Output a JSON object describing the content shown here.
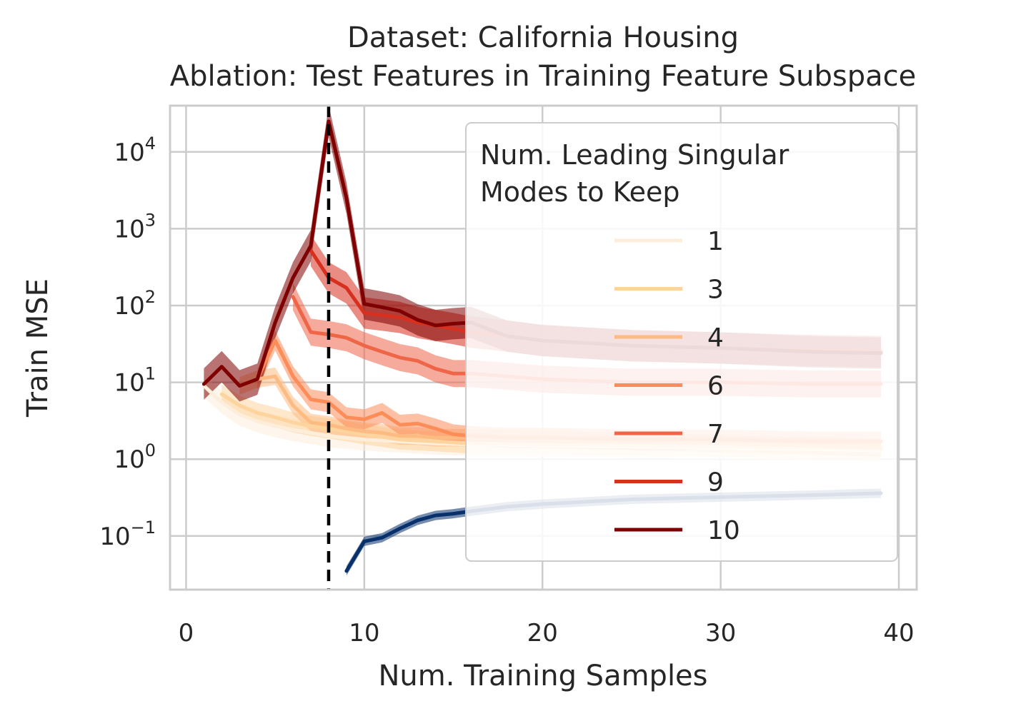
{
  "chart_data": {
    "type": "line",
    "title": "Dataset: California Housing",
    "subtitle": "Ablation: Test Features in Training Feature Subspace",
    "xlabel": "Num. Training Samples",
    "ylabel": "Train MSE",
    "xlim": [
      -0.9,
      41
    ],
    "ylim": [
      0.02,
      40000
    ],
    "yscale": "log",
    "x_ticks": [
      0,
      10,
      20,
      30,
      40
    ],
    "y_ticks": [
      {
        "value": 0.1,
        "base": "10",
        "exp": "−1"
      },
      {
        "value": 1,
        "base": "10",
        "exp": "0"
      },
      {
        "value": 10,
        "base": "10",
        "exp": "1"
      },
      {
        "value": 100,
        "base": "10",
        "exp": "2"
      },
      {
        "value": 1000,
        "base": "10",
        "exp": "3"
      },
      {
        "value": 10000,
        "base": "10",
        "exp": "4"
      }
    ],
    "grid": true,
    "vline": {
      "x": 8,
      "style": "dashed",
      "color": "#000000"
    },
    "legend": {
      "title_lines": [
        "Num. Leading Singular",
        "Modes to Keep"
      ],
      "placement": "upper right"
    },
    "series": [
      {
        "name": "1",
        "color": "#fdeedc",
        "x": [
          1,
          2,
          3,
          4,
          5,
          6,
          7,
          8,
          9,
          10,
          12,
          14,
          16,
          20,
          25,
          30,
          35,
          39
        ],
        "y": [
          9,
          5.5,
          3.8,
          3.1,
          2.7,
          2.4,
          2.2,
          2.0,
          1.9,
          1.8,
          1.7,
          1.6,
          1.55,
          1.5,
          1.45,
          1.4,
          1.35,
          1.3
        ],
        "band_factor": 1.4
      },
      {
        "name": "3",
        "color": "#fdd49e",
        "x": [
          2,
          3,
          4,
          5,
          6,
          7,
          8,
          9,
          10,
          12,
          14,
          16,
          20,
          25,
          30,
          35,
          39
        ],
        "y": [
          7,
          5,
          4.0,
          3.5,
          3.0,
          2.7,
          2.5,
          2.3,
          2.1,
          1.8,
          1.7,
          1.6,
          1.55,
          1.5,
          1.45,
          1.4,
          1.35
        ],
        "band_factor": 1.35
      },
      {
        "name": "4",
        "color": "#fdbb84",
        "x": [
          3,
          4,
          5,
          6,
          7,
          8,
          9,
          10,
          11,
          12,
          13,
          14,
          15,
          16,
          20,
          25,
          30,
          35,
          39
        ],
        "y": [
          9,
          11,
          12,
          5,
          3,
          2.8,
          2.5,
          2.3,
          2.2,
          2.0,
          2.0,
          1.9,
          1.9,
          1.9,
          1.8,
          1.7,
          1.6,
          1.5,
          1.4
        ],
        "band_factor": 1.3
      },
      {
        "name": "6",
        "color": "#fc8d59",
        "x": [
          4,
          5,
          6,
          7,
          8,
          9,
          10,
          11,
          12,
          13,
          14,
          15,
          16,
          18,
          20,
          25,
          30,
          35,
          39
        ],
        "y": [
          11,
          35,
          12,
          6,
          5.5,
          3.5,
          3.3,
          4.0,
          2.8,
          2.9,
          2.5,
          2.1,
          2.0,
          1.9,
          1.9,
          1.8,
          1.8,
          1.7,
          1.7
        ],
        "band_factor": 1.35
      },
      {
        "name": "7",
        "color": "#ef6548",
        "x": [
          6,
          7,
          8,
          9,
          10,
          11,
          12,
          13,
          14,
          15,
          16,
          18,
          20,
          25,
          30,
          35,
          39
        ],
        "y": [
          130,
          45,
          42,
          38,
          30,
          25,
          21,
          19,
          15,
          13,
          13,
          12,
          11,
          10,
          10,
          9.5,
          9.5
        ],
        "band_factor": 1.5
      },
      {
        "name": "9",
        "color": "#d7301f",
        "x": [
          7,
          8,
          9,
          10,
          11,
          12,
          13,
          14,
          15,
          16,
          18,
          20,
          25,
          30,
          35,
          39
        ],
        "y": [
          520,
          230,
          170,
          80,
          75,
          70,
          60,
          55,
          50,
          45,
          40,
          35,
          30,
          28,
          26,
          25
        ],
        "band_factor": 1.6
      },
      {
        "name": "10",
        "color": "#7f0000",
        "x": [
          1,
          2,
          3,
          4,
          5,
          6,
          7,
          8,
          9,
          10,
          11,
          12,
          13,
          14,
          15,
          16,
          18,
          20,
          25,
          30,
          35,
          39
        ],
        "y": [
          9.5,
          16,
          9,
          11,
          60,
          230,
          600,
          25000,
          2500,
          105,
          95,
          85,
          65,
          55,
          58,
          60,
          40,
          35,
          30,
          28,
          25,
          24
        ],
        "band_factor": 1.6
      },
      {
        "name": "",
        "color": "#08306b",
        "x": [
          9,
          10,
          11,
          12,
          13,
          14,
          15,
          16,
          18,
          20,
          25,
          30,
          35,
          39
        ],
        "y": [
          0.035,
          0.085,
          0.095,
          0.125,
          0.16,
          0.185,
          0.195,
          0.21,
          0.24,
          0.26,
          0.3,
          0.32,
          0.34,
          0.36
        ],
        "band_factor": 1.15
      }
    ]
  }
}
